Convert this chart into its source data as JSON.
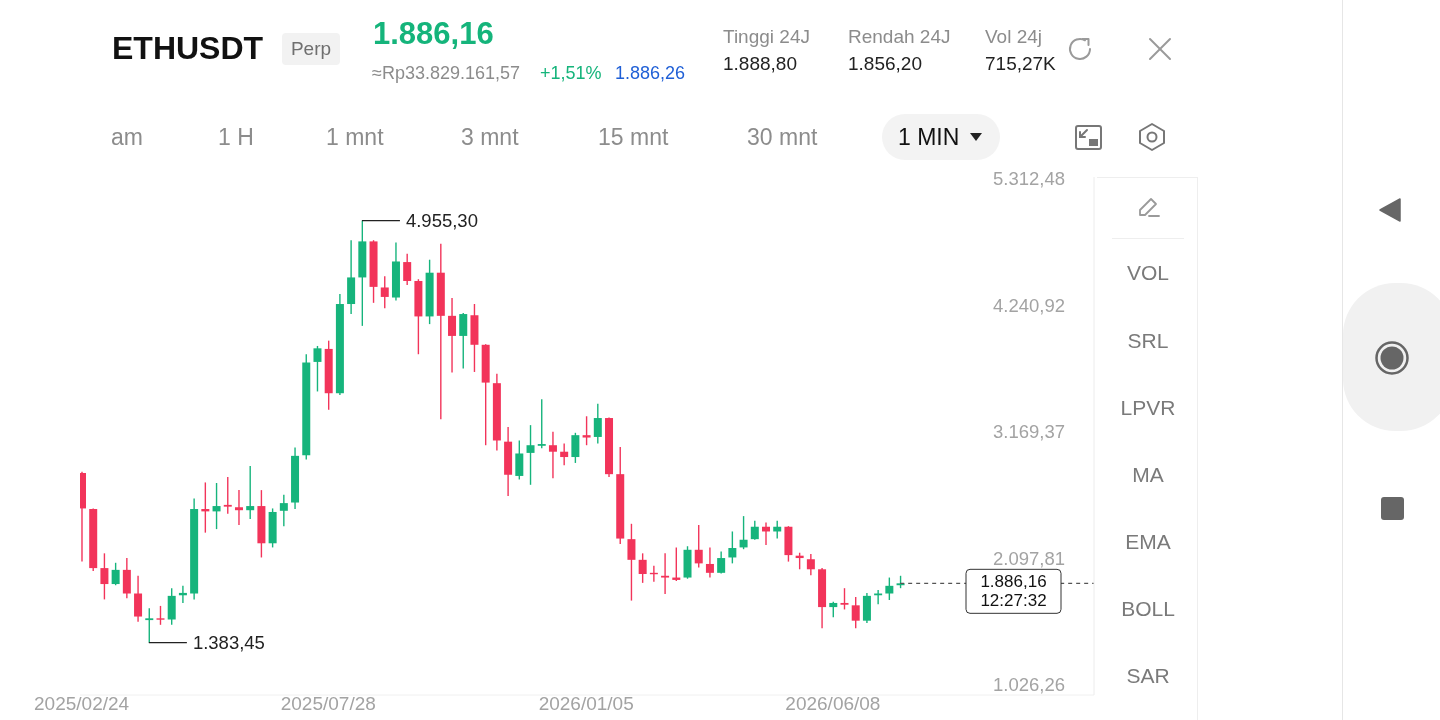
{
  "chart_data": {
    "type": "candlestick",
    "title": "ETHUSDT",
    "annotations": [
      "Perp",
      "1.886,16",
      "≈Rp33.829.161,57",
      "+1,51%",
      "1.886,26",
      "Tinggi 24J",
      "1.888,80",
      "Rendah 24J",
      "1.856,20",
      "Vol 24j",
      "715,27K",
      "am",
      "1 H",
      "1 mnt",
      "3 mnt",
      "15 mnt",
      "30 mnt",
      "1 MIN",
      "VOL",
      "SRL",
      "LPVR",
      "MA",
      "EMA",
      "BOLL",
      "SAR",
      {
        "text": "4.955,30",
        "x": "2025-08-18",
        "y": 4955.3
      },
      {
        "text": "1.383,45",
        "x": "2025-04-07",
        "y": 1383.45
      }
    ],
    "x": [
      "2025-02-24",
      "2025-03-03",
      "2025-03-10",
      "2025-03-17",
      "2025-03-24",
      "2025-03-31",
      "2025-04-07",
      "2025-04-14",
      "2025-04-21",
      "2025-04-28",
      "2025-05-05",
      "2025-05-12",
      "2025-05-19",
      "2025-05-26",
      "2025-06-02",
      "2025-06-09",
      "2025-06-16",
      "2025-06-23",
      "2025-06-30",
      "2025-07-07",
      "2025-07-14",
      "2025-07-21",
      "2025-07-28",
      "2025-08-04",
      "2025-08-11",
      "2025-08-18",
      "2025-08-25",
      "2025-09-01",
      "2025-09-08",
      "2025-09-15",
      "2025-09-22",
      "2025-09-29",
      "2025-10-06",
      "2025-10-13",
      "2025-10-20",
      "2025-10-27",
      "2025-11-03",
      "2025-11-10",
      "2025-11-17",
      "2025-11-24",
      "2025-12-01",
      "2025-12-08",
      "2025-12-15",
      "2025-12-22",
      "2025-12-29",
      "2026-01-05",
      "2026-01-12",
      "2026-01-19",
      "2026-01-26",
      "2026-02-02",
      "2026-02-09",
      "2026-02-16",
      "2026-02-23",
      "2026-03-02",
      "2026-03-09",
      "2026-03-16",
      "2026-03-23",
      "2026-03-30",
      "2026-04-06",
      "2026-04-13",
      "2026-04-20",
      "2026-04-27",
      "2026-05-04",
      "2026-05-11",
      "2026-05-18",
      "2026-05-25",
      "2026-06-01",
      "2026-06-08",
      "2026-06-15",
      "2026-06-22",
      "2026-06-29",
      "2026-07-06",
      "2026-07-13",
      "2026-07-20"
    ],
    "ohlc": [
      [
        2820,
        2830,
        2070,
        2520
      ],
      [
        2515,
        2520,
        1990,
        2015
      ],
      [
        2015,
        2140,
        1750,
        1880
      ],
      [
        1880,
        2060,
        1870,
        2000
      ],
      [
        2000,
        2100,
        1760,
        1800
      ],
      [
        1800,
        1950,
        1560,
        1605
      ],
      [
        1575,
        1675,
        1383.45,
        1590
      ],
      [
        1590,
        1695,
        1535,
        1580
      ],
      [
        1580,
        1845,
        1535,
        1780
      ],
      [
        1785,
        1865,
        1720,
        1805
      ],
      [
        1800,
        2605,
        1750,
        2515
      ],
      [
        2515,
        2740,
        2315,
        2495
      ],
      [
        2495,
        2735,
        2345,
        2540
      ],
      [
        2550,
        2785,
        2475,
        2535
      ],
      [
        2530,
        2675,
        2380,
        2505
      ],
      [
        2505,
        2880,
        2430,
        2540
      ],
      [
        2540,
        2675,
        2105,
        2225
      ],
      [
        2225,
        2520,
        2190,
        2490
      ],
      [
        2500,
        2635,
        2370,
        2565
      ],
      [
        2570,
        3035,
        2515,
        2965
      ],
      [
        2970,
        3825,
        2935,
        3755
      ],
      [
        3760,
        3895,
        3510,
        3875
      ],
      [
        3870,
        3940,
        3355,
        3495
      ],
      [
        3495,
        4335,
        3480,
        4250
      ],
      [
        4250,
        4790,
        4165,
        4475
      ],
      [
        4475,
        4955.3,
        4065,
        4780
      ],
      [
        4780,
        4790,
        4260,
        4395
      ],
      [
        4390,
        4485,
        4215,
        4310
      ],
      [
        4305,
        4770,
        4280,
        4610
      ],
      [
        4605,
        4675,
        4410,
        4445
      ],
      [
        4445,
        4460,
        3825,
        4145
      ],
      [
        4145,
        4625,
        4080,
        4515
      ],
      [
        4515,
        4760,
        3275,
        4150
      ],
      [
        4150,
        4300,
        3670,
        3980
      ],
      [
        3980,
        4175,
        3705,
        4165
      ],
      [
        4155,
        4250,
        3675,
        3905
      ],
      [
        3905,
        3910,
        3055,
        3585
      ],
      [
        3580,
        3660,
        3010,
        3095
      ],
      [
        3085,
        3210,
        2625,
        2805
      ],
      [
        2795,
        3095,
        2765,
        2985
      ],
      [
        2990,
        3225,
        2720,
        3055
      ],
      [
        3050,
        3445,
        3030,
        3065
      ],
      [
        3055,
        3170,
        2775,
        3000
      ],
      [
        3000,
        3070,
        2885,
        2955
      ],
      [
        2955,
        3160,
        2905,
        3140
      ],
      [
        3140,
        3300,
        3055,
        3120
      ],
      [
        3125,
        3405,
        3070,
        3285
      ],
      [
        3285,
        3290,
        2785,
        2810
      ],
      [
        2810,
        3040,
        2220,
        2265
      ],
      [
        2260,
        2390,
        1740,
        2085
      ],
      [
        2085,
        2140,
        1890,
        1965
      ],
      [
        1975,
        2035,
        1900,
        1965
      ],
      [
        1950,
        2140,
        1795,
        1935
      ],
      [
        1935,
        2190,
        1905,
        1915
      ],
      [
        1935,
        2200,
        1925,
        2170
      ],
      [
        2170,
        2380,
        2020,
        2055
      ],
      [
        2050,
        2190,
        1935,
        1975
      ],
      [
        1975,
        2155,
        1970,
        2100
      ],
      [
        2105,
        2325,
        2055,
        2185
      ],
      [
        2190,
        2455,
        2175,
        2255
      ],
      [
        2260,
        2415,
        2255,
        2365
      ],
      [
        2365,
        2400,
        2210,
        2325
      ],
      [
        2325,
        2415,
        2265,
        2365
      ],
      [
        2365,
        2370,
        2070,
        2125
      ],
      [
        2120,
        2145,
        2005,
        2100
      ],
      [
        2090,
        2135,
        1955,
        2005
      ],
      [
        2005,
        2015,
        1505,
        1685
      ],
      [
        1685,
        1730,
        1600,
        1720
      ],
      [
        1720,
        1845,
        1665,
        1705
      ],
      [
        1700,
        1770,
        1505,
        1570
      ],
      [
        1570,
        1805,
        1550,
        1780
      ],
      [
        1785,
        1830,
        1710,
        1800
      ],
      [
        1800,
        1935,
        1745,
        1865
      ],
      [
        1870,
        1950,
        1845,
        1886.16
      ]
    ],
    "colors": [
      "#f2345a",
      "#f2345a",
      "#f2345a",
      "#16b47c",
      "#f2345a",
      "#f2345a",
      "#16b47c",
      "#f2345a",
      "#16b47c",
      "#16b47c",
      "#16b47c",
      "#f2345a",
      "#16b47c",
      "#f2345a",
      "#f2345a",
      "#16b47c",
      "#f2345a",
      "#16b47c",
      "#16b47c",
      "#16b47c",
      "#16b47c",
      "#16b47c",
      "#f2345a",
      "#16b47c",
      "#16b47c",
      "#16b47c",
      "#f2345a",
      "#f2345a",
      "#16b47c",
      "#f2345a",
      "#f2345a",
      "#16b47c",
      "#f2345a",
      "#f2345a",
      "#16b47c",
      "#f2345a",
      "#f2345a",
      "#f2345a",
      "#f2345a",
      "#16b47c",
      "#16b47c",
      "#16b47c",
      "#f2345a",
      "#f2345a",
      "#16b47c",
      "#f2345a",
      "#16b47c",
      "#f2345a",
      "#f2345a",
      "#f2345a",
      "#f2345a",
      "#f2345a",
      "#f2345a",
      "#f2345a",
      "#16b47c",
      "#f2345a",
      "#f2345a",
      "#16b47c",
      "#16b47c",
      "#16b47c",
      "#16b47c",
      "#f2345a",
      "#16b47c",
      "#f2345a",
      "#f2345a",
      "#f2345a",
      "#f2345a",
      "#16b47c",
      "#f2345a",
      "#f2345a",
      "#16b47c",
      "#16b47c",
      "#16b47c",
      "#16b47c"
    ],
    "xlim": [
      "2025-02-23",
      "2026-11-18"
    ],
    "ylim": [
      941,
      5325
    ],
    "xticks": [
      {
        "value": "2025-02-24",
        "label": "2025/02/24"
      },
      {
        "value": "2025-07-28",
        "label": "2025/07/28"
      },
      {
        "value": "2026-01-05",
        "label": "2026/01/05"
      },
      {
        "value": "2026-06-08",
        "label": "2026/06/08"
      }
    ],
    "yticks": [
      {
        "value": 1026.26,
        "label": "1.026,26"
      },
      {
        "value": 2097.81,
        "label": "2.097,81"
      },
      {
        "value": 3169.37,
        "label": "3.169,37"
      },
      {
        "value": 4240.92,
        "label": "4.240,92"
      },
      {
        "value": 5312.48,
        "label": "5.312,48"
      }
    ],
    "ref_lines": [
      {
        "axis": "y",
        "value": 1886.16,
        "label": "1.886,16\n12:27:32",
        "color": "#555555",
        "line_style": "dashed"
      }
    ]
  }
}
